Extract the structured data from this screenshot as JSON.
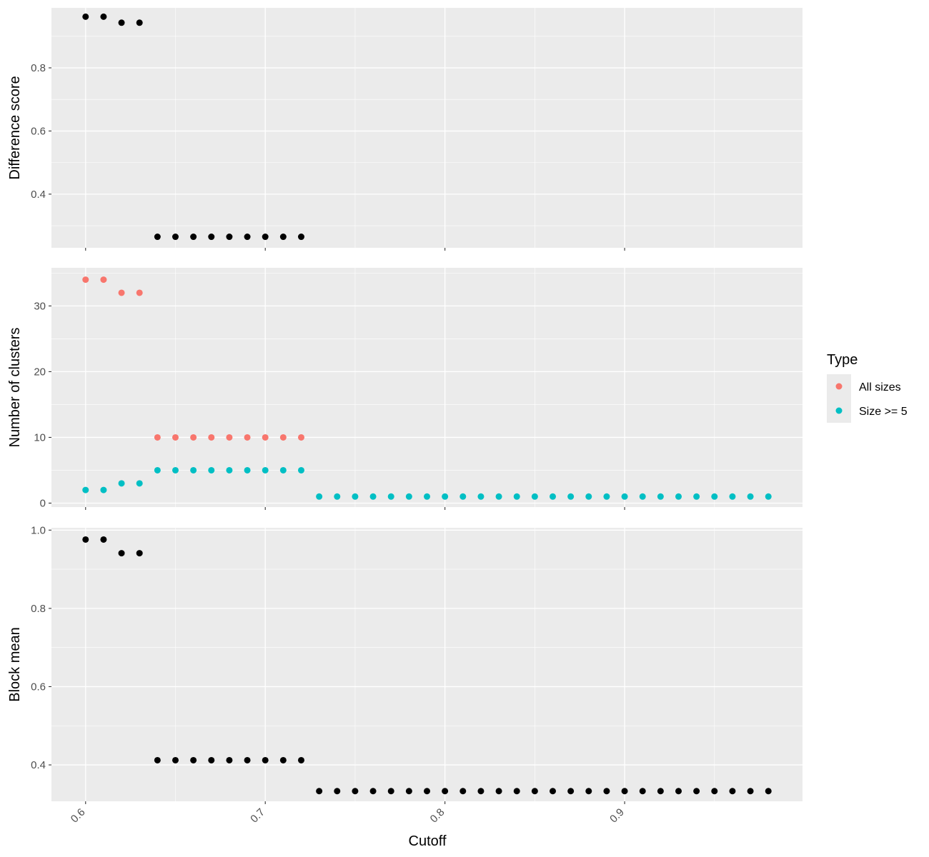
{
  "chart_data": {
    "type": "scatter",
    "xlabel": "Cutoff",
    "x_ticks": [
      "0.6",
      "0.7",
      "0.8",
      "0.9"
    ],
    "xlim": [
      0.581,
      0.999
    ],
    "grid": true,
    "legend": {
      "title": "Type",
      "placement": "right",
      "entries": [
        {
          "label": "All sizes",
          "color": "#F8766D"
        },
        {
          "label": "Size >= 5",
          "color": "#00BFC4"
        }
      ]
    },
    "panels": [
      {
        "ylabel": "Difference score",
        "ylim": [
          0.23,
          0.99
        ],
        "y_ticks": [
          "0.4",
          "0.6",
          "0.8"
        ],
        "series": [
          {
            "color": "#000000",
            "x": [
              0.6,
              0.61,
              0.62,
              0.63,
              0.64,
              0.65,
              0.66,
              0.67,
              0.68,
              0.69,
              0.7,
              0.71,
              0.72
            ],
            "y": [
              0.962,
              0.962,
              0.943,
              0.943,
              0.265,
              0.265,
              0.265,
              0.265,
              0.265,
              0.265,
              0.265,
              0.265,
              0.265
            ]
          }
        ]
      },
      {
        "ylabel": "Number of clusters",
        "ylim": [
          -0.6,
          35.8
        ],
        "y_ticks": [
          "0",
          "10",
          "20",
          "30"
        ],
        "series": [
          {
            "name": "All sizes",
            "color": "#F8766D",
            "x": [
              0.6,
              0.61,
              0.62,
              0.63,
              0.64,
              0.65,
              0.66,
              0.67,
              0.68,
              0.69,
              0.7,
              0.71,
              0.72
            ],
            "y": [
              34,
              34,
              32,
              32,
              10,
              10,
              10,
              10,
              10,
              10,
              10,
              10,
              10
            ]
          },
          {
            "name": "Size >= 5",
            "color": "#00BFC4",
            "x": [
              0.6,
              0.61,
              0.62,
              0.63,
              0.64,
              0.65,
              0.66,
              0.67,
              0.68,
              0.69,
              0.7,
              0.71,
              0.72,
              0.73,
              0.74,
              0.75,
              0.76,
              0.77,
              0.78,
              0.79,
              0.8,
              0.81,
              0.82,
              0.83,
              0.84,
              0.85,
              0.86,
              0.87,
              0.88,
              0.89,
              0.9,
              0.91,
              0.92,
              0.93,
              0.94,
              0.95,
              0.96,
              0.97,
              0.98
            ],
            "y": [
              2,
              2,
              3,
              3,
              5,
              5,
              5,
              5,
              5,
              5,
              5,
              5,
              5,
              1,
              1,
              1,
              1,
              1,
              1,
              1,
              1,
              1,
              1,
              1,
              1,
              1,
              1,
              1,
              1,
              1,
              1,
              1,
              1,
              1,
              1,
              1,
              1,
              1,
              1
            ]
          }
        ]
      },
      {
        "ylabel": "Block mean",
        "ylim": [
          0.307,
          1.006
        ],
        "y_ticks": [
          "0.4",
          "0.6",
          "0.8",
          "1.0"
        ],
        "series": [
          {
            "color": "#000000",
            "x": [
              0.6,
              0.61,
              0.62,
              0.63,
              0.64,
              0.65,
              0.66,
              0.67,
              0.68,
              0.69,
              0.7,
              0.71,
              0.72,
              0.73,
              0.74,
              0.75,
              0.76,
              0.77,
              0.78,
              0.79,
              0.8,
              0.81,
              0.82,
              0.83,
              0.84,
              0.85,
              0.86,
              0.87,
              0.88,
              0.89,
              0.9,
              0.91,
              0.92,
              0.93,
              0.94,
              0.95,
              0.96,
              0.97,
              0.98
            ],
            "y": [
              0.976,
              0.976,
              0.941,
              0.941,
              0.412,
              0.412,
              0.412,
              0.412,
              0.412,
              0.412,
              0.412,
              0.412,
              0.412,
              0.333,
              0.333,
              0.333,
              0.333,
              0.333,
              0.333,
              0.333,
              0.333,
              0.333,
              0.333,
              0.333,
              0.333,
              0.333,
              0.333,
              0.333,
              0.333,
              0.333,
              0.333,
              0.333,
              0.333,
              0.333,
              0.333,
              0.333,
              0.333,
              0.333,
              0.333
            ]
          }
        ]
      }
    ]
  }
}
